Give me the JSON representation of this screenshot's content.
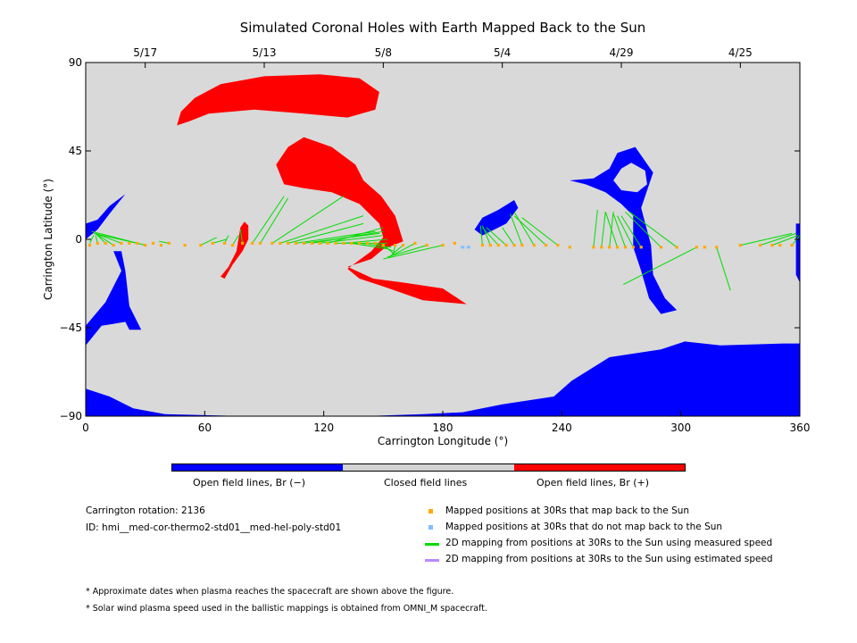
{
  "chart_data": {
    "type": "scatter",
    "title": "Simulated Coronal Holes with Earth Mapped Back to the Sun",
    "xlabel": "Carrington Longitude (°)",
    "ylabel": "Carrington Latitude (°)",
    "xlim": [
      0,
      360
    ],
    "ylim": [
      -90,
      90
    ],
    "x_ticks": [
      0,
      60,
      120,
      180,
      240,
      300,
      360
    ],
    "y_ticks": [
      -90,
      -45,
      0,
      45,
      90
    ],
    "x_tick_labels": [
      "0",
      "60",
      "120",
      "180",
      "240",
      "300",
      "360"
    ],
    "y_tick_labels": [
      "−90",
      "−45",
      "0",
      "45",
      "90"
    ],
    "top_axis_dates": [
      {
        "label": "5/17",
        "lon": 30
      },
      {
        "label": "5/13",
        "lon": 90
      },
      {
        "label": "5/8",
        "lon": 150
      },
      {
        "label": "5/4",
        "lon": 210
      },
      {
        "label": "4/29",
        "lon": 270
      },
      {
        "label": "4/25",
        "lon": 330
      }
    ],
    "background_color": "#d9d9d9",
    "colors": {
      "negative": "#0000ff",
      "closed": "#d3d3d3",
      "positive": "#ff0000",
      "mapped": "#ffaa00",
      "not_mapped": "#7fbfff",
      "measured": "#00dd00",
      "estimated": "#bb88ff"
    },
    "red_regions": [
      [
        [
          48,
          65
        ],
        [
          55,
          72
        ],
        [
          68,
          79
        ],
        [
          90,
          83
        ],
        [
          118,
          84
        ],
        [
          138,
          82
        ],
        [
          148,
          75
        ],
        [
          146,
          66
        ],
        [
          132,
          62
        ],
        [
          110,
          64
        ],
        [
          85,
          66
        ],
        [
          62,
          64
        ],
        [
          52,
          60
        ],
        [
          46,
          58
        ]
      ],
      [
        [
          96,
          38
        ],
        [
          102,
          47
        ],
        [
          110,
          52
        ],
        [
          124,
          47
        ],
        [
          136,
          38
        ],
        [
          140,
          30
        ],
        [
          149,
          22
        ],
        [
          156,
          12
        ],
        [
          160,
          -1
        ],
        [
          150,
          -5
        ],
        [
          144,
          -10
        ],
        [
          132,
          -14
        ],
        [
          145,
          -20
        ],
        [
          160,
          -22
        ],
        [
          180,
          -25
        ],
        [
          192,
          -33
        ],
        [
          170,
          -31
        ],
        [
          150,
          -24
        ],
        [
          138,
          -20
        ],
        [
          132,
          -15
        ],
        [
          144,
          -6
        ],
        [
          150,
          1
        ],
        [
          148,
          8
        ],
        [
          138,
          18
        ],
        [
          124,
          24
        ],
        [
          110,
          26
        ],
        [
          100,
          28
        ]
      ],
      [
        [
          68,
          -19
        ],
        [
          72,
          -14
        ],
        [
          76,
          -6
        ],
        [
          78,
          6
        ],
        [
          80,
          9
        ],
        [
          82,
          7
        ],
        [
          82,
          0
        ],
        [
          79,
          -6
        ],
        [
          74,
          -13
        ],
        [
          70,
          -20
        ]
      ]
    ],
    "blue_regions": [
      [
        [
          0,
          8
        ],
        [
          6,
          10
        ],
        [
          12,
          17
        ],
        [
          20,
          23
        ],
        [
          12,
          13
        ],
        [
          6,
          5
        ],
        [
          0,
          0
        ]
      ],
      [
        [
          14,
          -6
        ],
        [
          18,
          -16
        ],
        [
          10,
          -32
        ],
        [
          0,
          -44
        ],
        [
          0,
          -54
        ],
        [
          8,
          -44
        ],
        [
          20,
          -42
        ],
        [
          22,
          -46
        ],
        [
          28,
          -46
        ],
        [
          22,
          -34
        ],
        [
          20,
          -16
        ],
        [
          18,
          -6
        ]
      ],
      [
        [
          12,
          -57
        ],
        [
          14,
          -66
        ],
        [
          20,
          -74
        ],
        [
          40,
          -78
        ],
        [
          80,
          -79
        ],
        [
          120,
          -78
        ],
        [
          160,
          -76
        ],
        [
          200,
          -72
        ],
        [
          240,
          -66
        ],
        [
          270,
          -56
        ],
        [
          292,
          -44
        ],
        [
          300,
          -38
        ],
        [
          314,
          -24
        ],
        [
          336,
          -38
        ],
        [
          356,
          -40
        ],
        [
          360,
          -40
        ],
        [
          360,
          -53
        ],
        [
          352,
          -53
        ],
        [
          320,
          -54
        ],
        [
          302,
          -52
        ],
        [
          290,
          -56
        ],
        [
          264,
          -60
        ],
        [
          245,
          -72
        ],
        [
          236,
          -80
        ],
        [
          210,
          -84
        ],
        [
          190,
          -88
        ],
        [
          170,
          -89
        ],
        [
          140,
          -90
        ],
        [
          80,
          -90
        ],
        [
          40,
          -89
        ],
        [
          24,
          -86
        ],
        [
          12,
          -80
        ],
        [
          0,
          -76
        ],
        [
          0,
          -90
        ],
        [
          360,
          -90
        ],
        [
          360,
          -40
        ],
        [
          356,
          -40
        ],
        [
          336,
          -38
        ],
        [
          314,
          -24
        ],
        [
          300,
          -38
        ],
        [
          292,
          -44
        ],
        [
          270,
          -56
        ],
        [
          240,
          -66
        ],
        [
          200,
          -72
        ],
        [
          160,
          -76
        ],
        [
          120,
          -78
        ],
        [
          80,
          -79
        ],
        [
          40,
          -78
        ],
        [
          20,
          -74
        ],
        [
          14,
          -66
        ]
      ],
      [
        [
          196,
          5
        ],
        [
          200,
          11
        ],
        [
          208,
          15
        ],
        [
          216,
          20
        ],
        [
          218,
          16
        ],
        [
          212,
          8
        ],
        [
          206,
          5
        ],
        [
          200,
          2
        ]
      ],
      [
        [
          244,
          30
        ],
        [
          256,
          31
        ],
        [
          264,
          36
        ],
        [
          268,
          44
        ],
        [
          277,
          47
        ],
        [
          286,
          34
        ],
        [
          282,
          22
        ],
        [
          280,
          16
        ],
        [
          285,
          -3
        ],
        [
          286,
          -18
        ],
        [
          292,
          -30
        ],
        [
          298,
          -36
        ],
        [
          290,
          -38
        ],
        [
          284,
          -30
        ],
        [
          280,
          -16
        ],
        [
          276,
          -4
        ],
        [
          276,
          12
        ],
        [
          270,
          18
        ],
        [
          262,
          24
        ],
        [
          252,
          28
        ]
      ],
      [
        [
          358,
          -10
        ],
        [
          358,
          8
        ],
        [
          360,
          8
        ],
        [
          360,
          -22
        ],
        [
          358,
          -18
        ]
      ]
    ],
    "blue_holes": [
      [
        [
          266,
          30
        ],
        [
          270,
          36
        ],
        [
          275,
          39
        ],
        [
          282,
          35
        ],
        [
          283,
          28
        ],
        [
          278,
          24
        ],
        [
          270,
          25
        ]
      ]
    ],
    "mapped_points": [
      [
        2,
        -3
      ],
      [
        6,
        -2
      ],
      [
        10,
        -2
      ],
      [
        14,
        -3
      ],
      [
        18,
        -2
      ],
      [
        22,
        -2
      ],
      [
        26,
        -2
      ],
      [
        30,
        -3
      ],
      [
        34,
        -2
      ],
      [
        38,
        -3
      ],
      [
        42,
        -2
      ],
      [
        50,
        -3
      ],
      [
        58,
        -3
      ],
      [
        64,
        -2
      ],
      [
        70,
        -2
      ],
      [
        74,
        -3
      ],
      [
        79,
        -2
      ],
      [
        84,
        -2
      ],
      [
        88,
        -2
      ],
      [
        94,
        -2
      ],
      [
        98,
        -2
      ],
      [
        102,
        -2
      ],
      [
        106,
        -2
      ],
      [
        110,
        -2
      ],
      [
        114,
        -2
      ],
      [
        118,
        -2
      ],
      [
        122,
        -2
      ],
      [
        126,
        -2
      ],
      [
        130,
        -2
      ],
      [
        134,
        -2
      ],
      [
        138,
        -2
      ],
      [
        142,
        -2
      ],
      [
        146,
        -2
      ],
      [
        150,
        -3
      ],
      [
        156,
        -3
      ],
      [
        160,
        -3
      ],
      [
        166,
        -2
      ],
      [
        172,
        -3
      ],
      [
        180,
        -3
      ],
      [
        186,
        -2
      ],
      [
        200,
        -3
      ],
      [
        204,
        -3
      ],
      [
        208,
        -3
      ],
      [
        212,
        -3
      ],
      [
        216,
        -3
      ],
      [
        220,
        -3
      ],
      [
        226,
        -3
      ],
      [
        232,
        -3
      ],
      [
        238,
        -3
      ],
      [
        244,
        -4
      ],
      [
        256,
        -4
      ],
      [
        260,
        -4
      ],
      [
        264,
        -4
      ],
      [
        268,
        -4
      ],
      [
        272,
        -4
      ],
      [
        276,
        -4
      ],
      [
        280,
        -4
      ],
      [
        290,
        -4
      ],
      [
        298,
        -4
      ],
      [
        308,
        -4
      ],
      [
        312,
        -4
      ],
      [
        318,
        -4
      ],
      [
        330,
        -3
      ],
      [
        340,
        -3
      ],
      [
        346,
        -3
      ],
      [
        350,
        -3
      ],
      [
        356,
        -3
      ]
    ],
    "not_mapped_points": [
      [
        190,
        -4
      ],
      [
        193,
        -4
      ]
    ],
    "measured_lines": [
      [
        [
          2,
          -2
        ],
        [
          4,
          2
        ]
      ],
      [
        [
          6,
          -2
        ],
        [
          5,
          2
        ]
      ],
      [
        [
          10,
          -2
        ],
        [
          5,
          3
        ]
      ],
      [
        [
          14,
          -3
        ],
        [
          5,
          3
        ]
      ],
      [
        [
          18,
          -2
        ],
        [
          5,
          3
        ]
      ],
      [
        [
          26,
          -2
        ],
        [
          4,
          3
        ]
      ],
      [
        [
          30,
          -3
        ],
        [
          3,
          4
        ]
      ],
      [
        [
          42,
          -2
        ],
        [
          37,
          -1
        ]
      ],
      [
        [
          58,
          -3
        ],
        [
          66,
          1
        ]
      ],
      [
        [
          64,
          -2
        ],
        [
          71,
          0
        ]
      ],
      [
        [
          70,
          -2
        ],
        [
          72,
          2
        ]
      ],
      [
        [
          74,
          -3
        ],
        [
          77,
          2
        ]
      ],
      [
        [
          79,
          -2
        ],
        [
          78,
          5
        ]
      ],
      [
        [
          84,
          -2
        ],
        [
          100,
          22
        ]
      ],
      [
        [
          88,
          -2
        ],
        [
          102,
          21
        ]
      ],
      [
        [
          94,
          -2
        ],
        [
          130,
          22
        ]
      ],
      [
        [
          98,
          -2
        ],
        [
          140,
          12
        ]
      ],
      [
        [
          102,
          -2
        ],
        [
          140,
          8
        ]
      ],
      [
        [
          106,
          -2
        ],
        [
          146,
          4
        ]
      ],
      [
        [
          110,
          -2
        ],
        [
          148,
          3
        ]
      ],
      [
        [
          114,
          -2
        ],
        [
          150,
          4
        ]
      ],
      [
        [
          118,
          -2
        ],
        [
          150,
          2
        ]
      ],
      [
        [
          122,
          -2
        ],
        [
          150,
          6
        ]
      ],
      [
        [
          126,
          -2
        ],
        [
          152,
          -2
        ]
      ],
      [
        [
          130,
          -2
        ],
        [
          152,
          0
        ]
      ],
      [
        [
          134,
          -2
        ],
        [
          153,
          -5
        ]
      ],
      [
        [
          138,
          -2
        ],
        [
          154,
          -4
        ]
      ],
      [
        [
          146,
          -2
        ],
        [
          155,
          -6
        ]
      ],
      [
        [
          150,
          -3
        ],
        [
          155,
          -7
        ]
      ],
      [
        [
          156,
          -3
        ],
        [
          155,
          -8
        ]
      ],
      [
        [
          160,
          -3
        ],
        [
          154,
          -8
        ]
      ],
      [
        [
          166,
          -2
        ],
        [
          153,
          -9
        ]
      ],
      [
        [
          172,
          -3
        ],
        [
          152,
          -9
        ]
      ],
      [
        [
          180,
          -3
        ],
        [
          150,
          -10
        ]
      ],
      [
        [
          200,
          -3
        ],
        [
          199,
          7
        ]
      ],
      [
        [
          204,
          -3
        ],
        [
          200,
          7
        ]
      ],
      [
        [
          208,
          -3
        ],
        [
          200,
          6
        ]
      ],
      [
        [
          212,
          -3
        ],
        [
          202,
          6
        ]
      ],
      [
        [
          216,
          -3
        ],
        [
          210,
          6
        ]
      ],
      [
        [
          220,
          -3
        ],
        [
          214,
          13
        ]
      ],
      [
        [
          226,
          -3
        ],
        [
          216,
          14
        ]
      ],
      [
        [
          232,
          -3
        ],
        [
          216,
          12
        ]
      ],
      [
        [
          238,
          -3
        ],
        [
          220,
          11
        ]
      ],
      [
        [
          256,
          -4
        ],
        [
          258,
          15
        ]
      ],
      [
        [
          260,
          -4
        ],
        [
          262,
          14
        ]
      ],
      [
        [
          264,
          -4
        ],
        [
          266,
          14
        ]
      ],
      [
        [
          268,
          -4
        ],
        [
          262,
          14
        ]
      ],
      [
        [
          272,
          -4
        ],
        [
          266,
          13
        ]
      ],
      [
        [
          276,
          -4
        ],
        [
          268,
          12
        ]
      ],
      [
        [
          280,
          -4
        ],
        [
          270,
          12
        ]
      ],
      [
        [
          290,
          -4
        ],
        [
          272,
          14
        ]
      ],
      [
        [
          298,
          -4
        ],
        [
          274,
          14
        ]
      ],
      [
        [
          308,
          -4
        ],
        [
          271,
          -23
        ]
      ],
      [
        [
          318,
          -4
        ],
        [
          325,
          -26
        ]
      ],
      [
        [
          330,
          -3
        ],
        [
          356,
          3
        ]
      ],
      [
        [
          340,
          -3
        ],
        [
          358,
          3
        ]
      ],
      [
        [
          346,
          -3
        ],
        [
          359,
          2
        ]
      ],
      [
        [
          356,
          -3
        ],
        [
          360,
          2
        ]
      ]
    ]
  },
  "colorbar": {
    "segments": [
      "#0000ff",
      "#d3d3d3",
      "#ff0000"
    ],
    "labels": [
      "Open field lines, Br (−)",
      "Closed field lines",
      "Open field lines, Br (+)"
    ]
  },
  "info": {
    "rotation": "Carrington rotation: 2136",
    "id": "ID: hmi__med-cor-thermo2-std01__med-hel-poly-std01"
  },
  "legend": [
    {
      "kind": "square",
      "color": "#ffaa00",
      "text": "Mapped positions at 30Rs that map back to the Sun"
    },
    {
      "kind": "square",
      "color": "#7fbfff",
      "text": "Mapped positions at 30Rs that do not map back to the Sun"
    },
    {
      "kind": "line",
      "color": "#00dd00",
      "text": "2D mapping from positions at 30Rs to the Sun using measured speed"
    },
    {
      "kind": "line",
      "color": "#bb88ff",
      "text": "2D mapping from positions at 30Rs to the Sun using estimated speed"
    }
  ],
  "footnotes": [
    "* Approximate dates when plasma reaches the spacecraft are shown above the figure.",
    "* Solar wind plasma speed used in the ballistic mappings is obtained from OMNI_M spacecraft."
  ]
}
